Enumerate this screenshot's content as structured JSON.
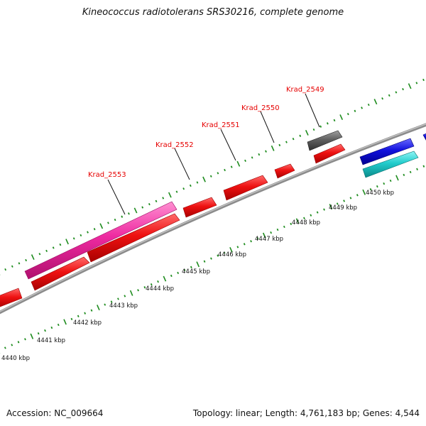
{
  "title": "Kineococcus radiotolerans SRS30216, complete genome",
  "footer": {
    "accession": "Accession: NC_009664",
    "info": "Topology: linear; Length: 4,761,183 bp; Genes: 4,544"
  },
  "scale_labels": [
    "4440 kbp",
    "4441 kbp",
    "4442 kbp",
    "4443 kbp",
    "4444 kbp",
    "4445 kbp",
    "4446 kbp",
    "4447 kbp",
    "4448 kbp",
    "4449 kbp",
    "4450 kbp"
  ],
  "gene_labels": [
    "Krad_2553",
    "Krad_2552",
    "Krad_2551",
    "Krad_2550",
    "Krad_2549"
  ],
  "colors": {
    "backbone": "#8c8c8c",
    "ruler": "#1e8c1e",
    "red_gene": "#ee1111",
    "pink_gene": "#ee2aa0",
    "gray_gene": "#606060",
    "blue_gene": "#1111dd",
    "cyan_gene": "#22cccc",
    "label": "#e60000"
  }
}
